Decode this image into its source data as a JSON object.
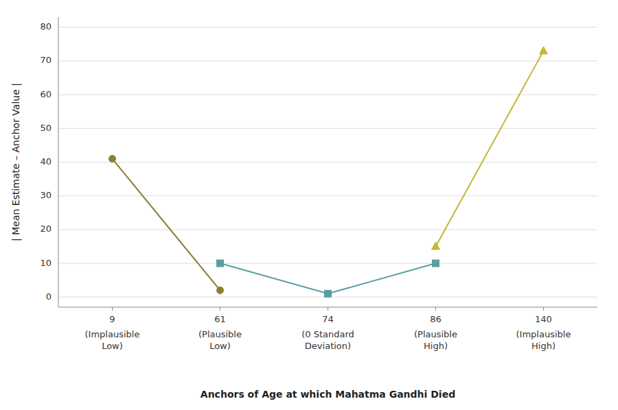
{
  "chart_data": {
    "type": "line",
    "categories": [
      "9\n(Implausible\nLow)",
      "61\n(Plausible\nLow)",
      "74\n(0 Standard\nDeviation)",
      "86\n(Plausible\nHigh)",
      "140\n(Implausible\nHigh)"
    ],
    "series": [
      {
        "color": "#8B7D35",
        "marker": "circle",
        "values": [
          41,
          2,
          null,
          null,
          null
        ]
      },
      {
        "color": "#5B9EA0",
        "marker": "square",
        "values": [
          null,
          10,
          1,
          10,
          null
        ]
      },
      {
        "color": "#C4B832",
        "marker": "triangle",
        "values": [
          null,
          null,
          null,
          15,
          73
        ]
      }
    ],
    "xlabel": "Anchors of Age at which Mahatma Gandhi Died",
    "ylabel": "| Mean Estimate – Anchor Value |",
    "ylim": [
      -3,
      83
    ],
    "yticks": [
      0,
      10,
      20,
      30,
      40,
      50,
      60,
      70,
      80
    ],
    "grid": true
  }
}
